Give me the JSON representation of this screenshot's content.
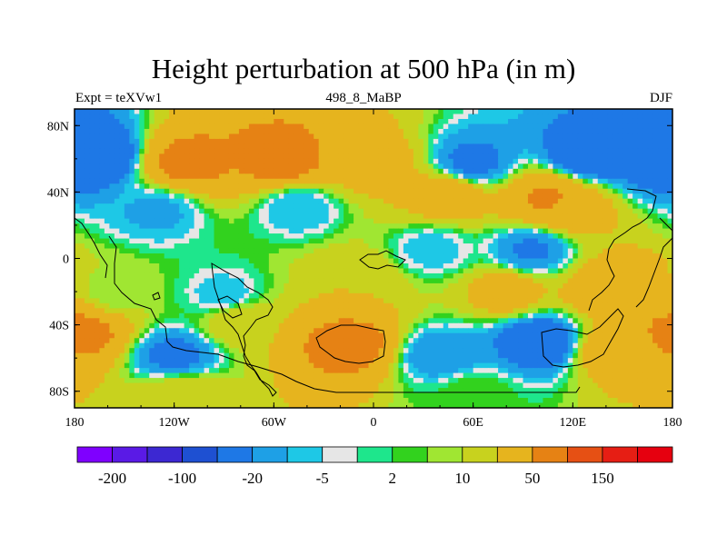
{
  "title": "Height perturbation at 500 hPa (in m)",
  "subtitle_left": "Expt = teXVw1",
  "subtitle_center": "498_8_MaBP",
  "subtitle_right": "DJF",
  "chart_data": {
    "type": "heatmap",
    "title": "Height perturbation at 500 hPa (in m)",
    "variable": "500 hPa geopotential height perturbation",
    "units": "m",
    "x_range": [
      -180,
      180
    ],
    "y_range": [
      -90,
      90
    ],
    "x_ticks": [
      {
        "value": -180,
        "label": "180"
      },
      {
        "value": -120,
        "label": "120W"
      },
      {
        "value": -60,
        "label": "60W"
      },
      {
        "value": 0,
        "label": "0"
      },
      {
        "value": 60,
        "label": "60E"
      },
      {
        "value": 120,
        "label": "120E"
      },
      {
        "value": 180,
        "label": "180"
      }
    ],
    "y_ticks": [
      {
        "value": 80,
        "label": "80N"
      },
      {
        "value": 40,
        "label": "40N"
      },
      {
        "value": 0,
        "label": "0"
      },
      {
        "value": -40,
        "label": "40S"
      },
      {
        "value": -80,
        "label": "80S"
      }
    ],
    "colorbar": {
      "colors": [
        "#7f00ff",
        "#5a1ae6",
        "#3c28d2",
        "#1e50d2",
        "#1e78e6",
        "#1ea0e6",
        "#1ec8e6",
        "#e6e6e6",
        "#1ee68c",
        "#32d21e",
        "#a0e632",
        "#c8d21e",
        "#e6b41e",
        "#e68214",
        "#e65014",
        "#e61e14",
        "#e6000f"
      ],
      "labels": [
        {
          "after_index": 0,
          "text": "-200"
        },
        {
          "after_index": 2,
          "text": "-100"
        },
        {
          "after_index": 4,
          "text": "-20"
        },
        {
          "after_index": 6,
          "text": "-5"
        },
        {
          "after_index": 8,
          "text": "2"
        },
        {
          "after_index": 10,
          "text": "10"
        },
        {
          "after_index": 12,
          "text": "50"
        },
        {
          "after_index": 14,
          "text": "150"
        }
      ]
    },
    "field_features": [
      {
        "lon": -112,
        "lat": 58,
        "value": 60
      },
      {
        "lon": -55,
        "lat": 60,
        "value": 65
      },
      {
        "lon": 0,
        "lat": 58,
        "value": 30
      },
      {
        "lon": 60,
        "lat": 58,
        "value": -25
      },
      {
        "lon": 130,
        "lat": 62,
        "value": -40
      },
      {
        "lon": 168,
        "lat": 58,
        "value": -30
      },
      {
        "lon": -168,
        "lat": 62,
        "value": -45
      },
      {
        "lon": 45,
        "lat": 38,
        "value": 35
      },
      {
        "lon": 105,
        "lat": 36,
        "value": 55
      },
      {
        "lon": 120,
        "lat": 30,
        "value": 30
      },
      {
        "lon": -130,
        "lat": 28,
        "value": -12
      },
      {
        "lon": -45,
        "lat": 30,
        "value": -10
      },
      {
        "lon": 95,
        "lat": 5,
        "value": -22
      },
      {
        "lon": 35,
        "lat": 5,
        "value": -8
      },
      {
        "lon": -10,
        "lat": -12,
        "value": 20
      },
      {
        "lon": 80,
        "lat": -20,
        "value": 30
      },
      {
        "lon": 145,
        "lat": -18,
        "value": 45
      },
      {
        "lon": -155,
        "lat": -20,
        "value": 6
      },
      {
        "lon": -90,
        "lat": -22,
        "value": -8
      },
      {
        "lon": -175,
        "lat": -45,
        "value": 60
      },
      {
        "lon": -80,
        "lat": -38,
        "value": 20
      },
      {
        "lon": -15,
        "lat": -52,
        "value": 65
      },
      {
        "lon": 100,
        "lat": -50,
        "value": -40
      },
      {
        "lon": -120,
        "lat": -58,
        "value": -25
      },
      {
        "lon": 40,
        "lat": -58,
        "value": -18
      },
      {
        "lon": 145,
        "lat": -55,
        "value": 35
      },
      {
        "lon": -115,
        "lat": -82,
        "value": 20
      },
      {
        "lon": 60,
        "lat": -82,
        "value": 5
      }
    ]
  }
}
